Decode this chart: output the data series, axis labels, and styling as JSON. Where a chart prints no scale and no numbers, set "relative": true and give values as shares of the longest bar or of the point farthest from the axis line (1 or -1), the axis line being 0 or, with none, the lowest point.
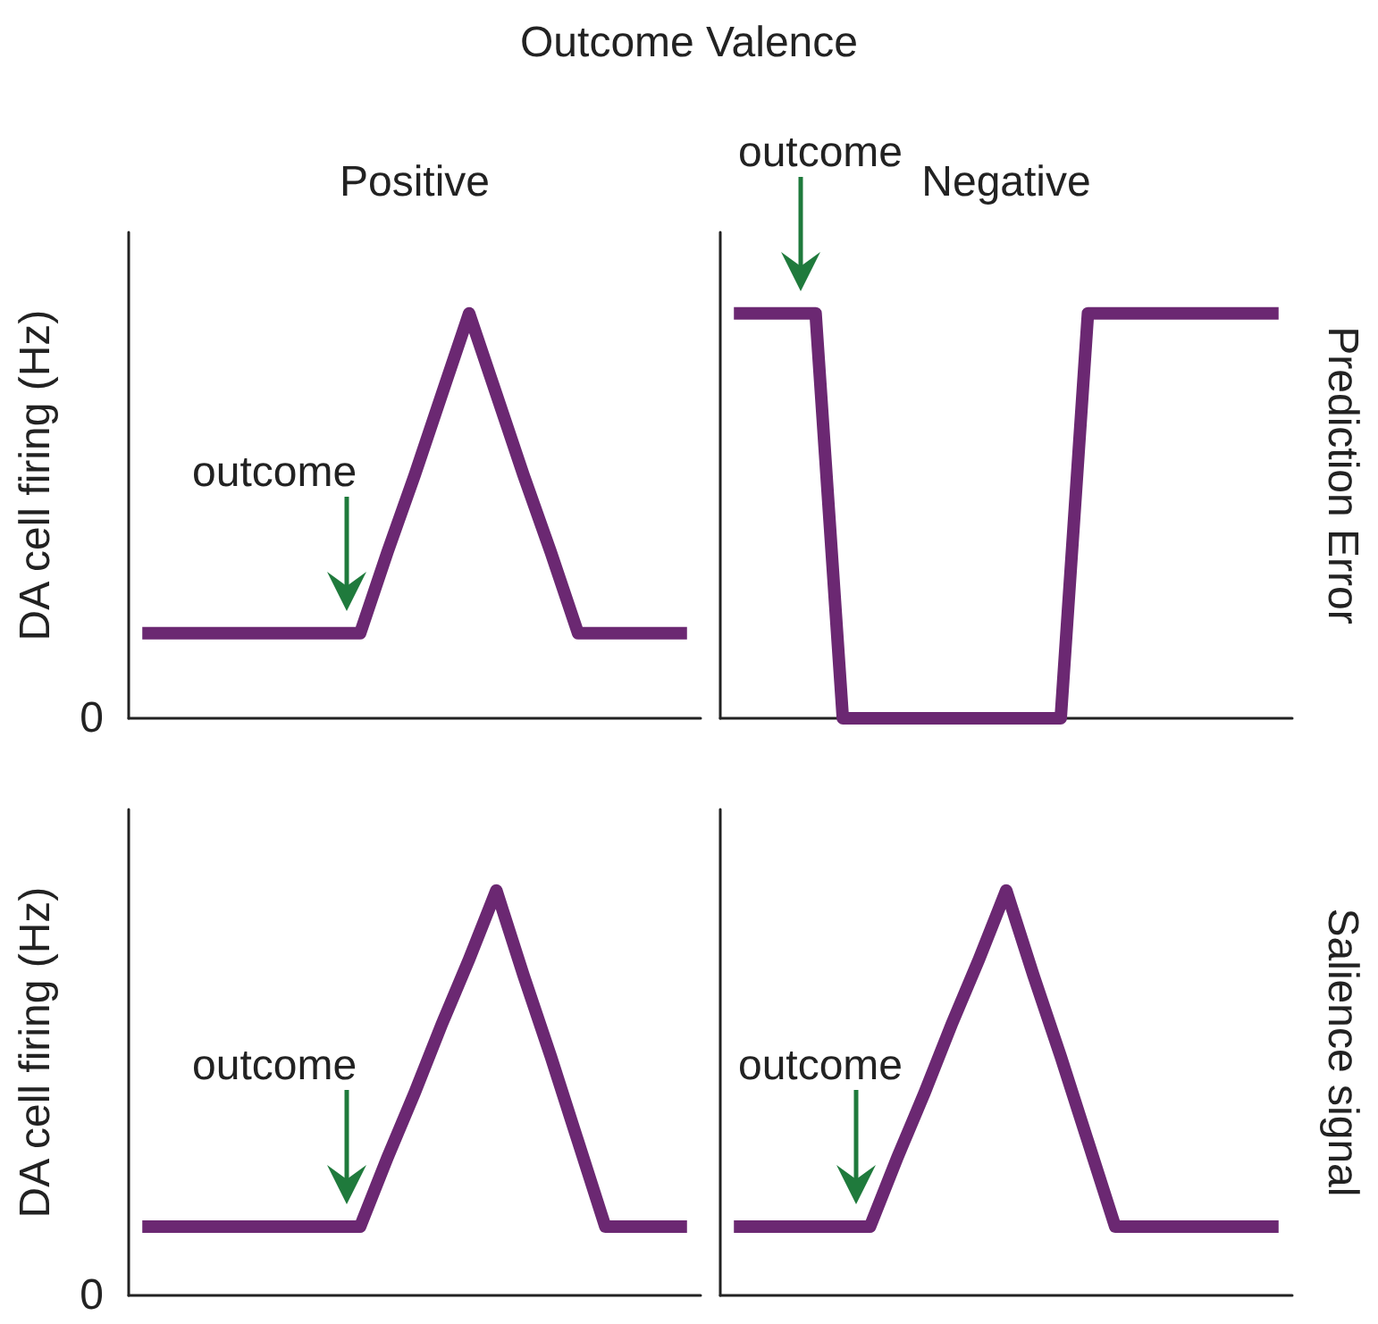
{
  "chart_data": [
    {
      "type": "line",
      "title": "Outcome Valence",
      "subtitle": "Positive",
      "ylabel": "DA cell firing (Hz)",
      "relative": true,
      "marker": "none",
      "line_style": "solid",
      "annotations": [
        "outcome",
        "0"
      ],
      "categories": [
        null,
        null,
        null,
        null,
        null,
        null,
        null,
        null,
        null,
        null,
        null,
        null,
        null,
        null,
        null,
        null,
        null,
        null,
        null,
        null,
        null
      ],
      "series": [
        {
          "color": "#6b2872",
          "values": [
            0.21,
            0.21,
            0.21,
            0.21,
            0.21,
            0.21,
            0.21,
            0.21,
            0.21,
            0.41,
            0.6,
            0.8,
            1,
            0.8,
            0.6,
            0.41,
            0.21,
            0.21,
            0.21,
            0.21,
            0.21
          ]
        }
      ]
    },
    {
      "type": "line",
      "subtitle": "Negative",
      "y2label": "Prediction Error",
      "relative": true,
      "marker": "none",
      "line_style": "solid",
      "annotations": [
        "outcome"
      ],
      "categories": [
        null,
        null,
        null,
        null,
        null,
        null,
        null,
        null,
        null,
        null,
        null,
        null,
        null,
        null,
        null,
        null,
        null,
        null,
        null,
        null,
        null
      ],
      "series": [
        {
          "color": "#6b2872",
          "values": [
            1,
            1,
            1,
            1,
            0,
            0,
            0,
            0,
            0,
            0,
            0,
            0,
            0,
            1,
            1,
            1,
            1,
            1,
            1,
            1,
            1
          ]
        }
      ]
    },
    {
      "type": "line",
      "ylabel": "DA cell firing (Hz)",
      "relative": true,
      "marker": "none",
      "line_style": "solid",
      "annotations": [
        "outcome",
        "0"
      ],
      "categories": [
        null,
        null,
        null,
        null,
        null,
        null,
        null,
        null,
        null,
        null,
        null,
        null,
        null,
        null,
        null,
        null,
        null,
        null,
        null,
        null,
        null
      ],
      "series": [
        {
          "color": "#6b2872",
          "values": [
            0.17,
            0.17,
            0.17,
            0.17,
            0.17,
            0.17,
            0.17,
            0.17,
            0.17,
            0.34,
            0.5,
            0.67,
            0.83,
            1,
            0.79,
            0.59,
            0.38,
            0.17,
            0.17,
            0.17,
            0.17
          ]
        }
      ]
    },
    {
      "type": "line",
      "y2label": "Salience signal",
      "relative": true,
      "marker": "none",
      "line_style": "solid",
      "annotations": [
        "outcome"
      ],
      "categories": [
        null,
        null,
        null,
        null,
        null,
        null,
        null,
        null,
        null,
        null,
        null,
        null,
        null,
        null,
        null,
        null,
        null,
        null,
        null,
        null,
        null
      ],
      "series": [
        {
          "color": "#6b2872",
          "values": [
            0.17,
            0.17,
            0.17,
            0.17,
            0.17,
            0.17,
            0.34,
            0.5,
            0.67,
            0.83,
            1,
            0.79,
            0.59,
            0.38,
            0.17,
            0.17,
            0.17,
            0.17,
            0.17,
            0.17,
            0.17
          ]
        }
      ]
    }
  ]
}
